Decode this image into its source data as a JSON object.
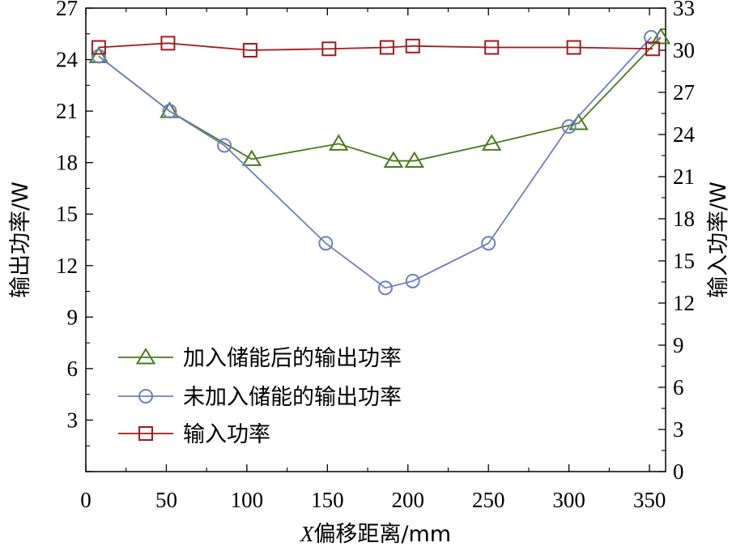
{
  "chart_data": {
    "type": "line",
    "xlabel_var": "X",
    "xlabel_rest": "偏移距离/mm",
    "ylabel_left": "输出功率/W",
    "ylabel_right": "输入功率/W",
    "xlim": [
      0,
      360
    ],
    "ylim_left": [
      0,
      27
    ],
    "ylim_right": [
      0,
      33
    ],
    "x_ticks": [
      0,
      50,
      100,
      150,
      200,
      250,
      300,
      350
    ],
    "y_ticks_left": [
      3,
      6,
      9,
      12,
      15,
      18,
      21,
      24,
      27
    ],
    "y_ticks_right": [
      0,
      3,
      6,
      9,
      12,
      15,
      18,
      21,
      24,
      27,
      30,
      33
    ],
    "legend_position": "lower-left",
    "series": [
      {
        "name": "加入储能后的输出功率",
        "axis": "left",
        "marker": "triangle",
        "color": "#4a7a1e",
        "x": [
          8,
          52,
          103,
          157,
          191,
          204,
          252,
          306,
          357
        ],
        "y": [
          24.2,
          21.0,
          18.2,
          19.1,
          18.1,
          18.1,
          19.1,
          20.3,
          25.3
        ]
      },
      {
        "name": "未加入储能的输出功率",
        "axis": "left",
        "marker": "circle",
        "color": "#6b80c4",
        "x": [
          8,
          52,
          86,
          149,
          186,
          203,
          250,
          300,
          351
        ],
        "y": [
          24.2,
          21.0,
          19.0,
          13.3,
          10.7,
          11.1,
          13.3,
          20.1,
          25.3
        ]
      },
      {
        "name": "输入功率",
        "axis": "right",
        "marker": "square",
        "color": "#a31a1a",
        "x": [
          8,
          51,
          102,
          151,
          187,
          203,
          252,
          303,
          352
        ],
        "y": [
          30.2,
          30.5,
          30.0,
          30.1,
          30.2,
          30.3,
          30.2,
          30.2,
          30.1
        ]
      }
    ]
  }
}
